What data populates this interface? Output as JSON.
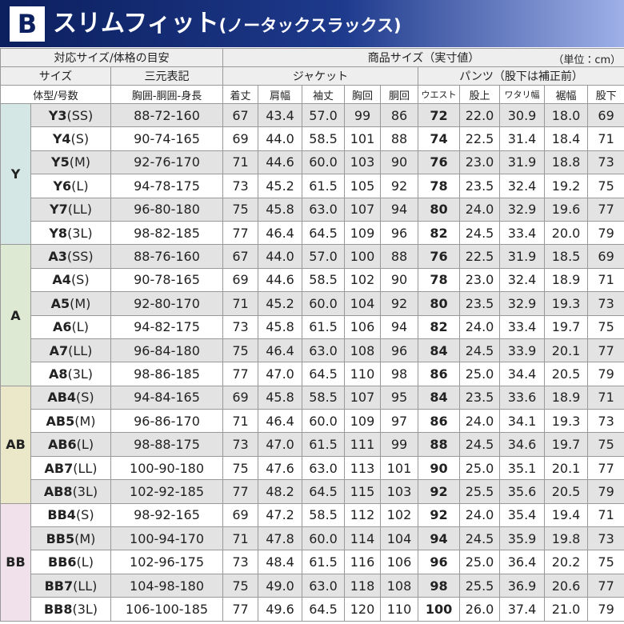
{
  "header": {
    "badge": "B",
    "title": "スリムフィット",
    "subtitle": "(ノータックスラックス)"
  },
  "table": {
    "head": {
      "fit_group": "対応サイズ/体格の目安",
      "product_group": "商品サイズ（実寸値）",
      "unit": "（単位：cm）",
      "size": "サイズ",
      "three": "三元表記",
      "jacket": "ジャケット",
      "pants": "パンツ（股下は補正前）",
      "body": "体型/号数",
      "measure": "胸囲-胴囲-身長",
      "columns": [
        "着丈",
        "肩幅",
        "袖丈",
        "胸回",
        "胴回",
        "ウエスト",
        "股上",
        "ワタリ幅",
        "裾幅",
        "股下"
      ]
    },
    "groups": [
      {
        "label": "Y",
        "rows": [
          {
            "code": "Y3",
            "fit": "(SS)",
            "spec": "88-72-160",
            "values": [
              "67",
              "43.4",
              "57.0",
              "99",
              "86",
              "72",
              "22.0",
              "30.9",
              "18.0",
              "69"
            ]
          },
          {
            "code": "Y4",
            "fit": "(S)",
            "spec": "90-74-165",
            "values": [
              "69",
              "44.0",
              "58.5",
              "101",
              "88",
              "74",
              "22.5",
              "31.4",
              "18.4",
              "71"
            ]
          },
          {
            "code": "Y5",
            "fit": "(M)",
            "spec": "92-76-170",
            "values": [
              "71",
              "44.6",
              "60.0",
              "103",
              "90",
              "76",
              "23.0",
              "31.9",
              "18.8",
              "73"
            ]
          },
          {
            "code": "Y6",
            "fit": "(L)",
            "spec": "94-78-175",
            "values": [
              "73",
              "45.2",
              "61.5",
              "105",
              "92",
              "78",
              "23.5",
              "32.4",
              "19.2",
              "75"
            ]
          },
          {
            "code": "Y7",
            "fit": "(LL)",
            "spec": "96-80-180",
            "values": [
              "75",
              "45.8",
              "63.0",
              "107",
              "94",
              "80",
              "24.0",
              "32.9",
              "19.6",
              "77"
            ]
          },
          {
            "code": "Y8",
            "fit": "(3L)",
            "spec": "98-82-185",
            "values": [
              "77",
              "46.4",
              "64.5",
              "109",
              "96",
              "82",
              "24.5",
              "33.4",
              "20.0",
              "79"
            ]
          }
        ]
      },
      {
        "label": "A",
        "rows": [
          {
            "code": "A3",
            "fit": "(SS)",
            "spec": "88-76-160",
            "values": [
              "67",
              "44.0",
              "57.0",
              "100",
              "88",
              "76",
              "22.5",
              "31.9",
              "18.5",
              "69"
            ]
          },
          {
            "code": "A4",
            "fit": "(S)",
            "spec": "90-78-165",
            "values": [
              "69",
              "44.6",
              "58.5",
              "102",
              "90",
              "78",
              "23.0",
              "32.4",
              "18.9",
              "71"
            ]
          },
          {
            "code": "A5",
            "fit": "(M)",
            "spec": "92-80-170",
            "values": [
              "71",
              "45.2",
              "60.0",
              "104",
              "92",
              "80",
              "23.5",
              "32.9",
              "19.3",
              "73"
            ]
          },
          {
            "code": "A6",
            "fit": "(L)",
            "spec": "94-82-175",
            "values": [
              "73",
              "45.8",
              "61.5",
              "106",
              "94",
              "82",
              "24.0",
              "33.4",
              "19.7",
              "75"
            ]
          },
          {
            "code": "A7",
            "fit": "(LL)",
            "spec": "96-84-180",
            "values": [
              "75",
              "46.4",
              "63.0",
              "108",
              "96",
              "84",
              "24.5",
              "33.9",
              "20.1",
              "77"
            ]
          },
          {
            "code": "A8",
            "fit": "(3L)",
            "spec": "98-86-185",
            "values": [
              "77",
              "47.0",
              "64.5",
              "110",
              "98",
              "86",
              "25.0",
              "34.4",
              "20.5",
              "79"
            ]
          }
        ]
      },
      {
        "label": "AB",
        "rows": [
          {
            "code": "AB4",
            "fit": "(S)",
            "spec": "94-84-165",
            "values": [
              "69",
              "45.8",
              "58.5",
              "107",
              "95",
              "84",
              "23.5",
              "33.6",
              "18.9",
              "71"
            ]
          },
          {
            "code": "AB5",
            "fit": "(M)",
            "spec": "96-86-170",
            "values": [
              "71",
              "46.4",
              "60.0",
              "109",
              "97",
              "86",
              "24.0",
              "34.1",
              "19.3",
              "73"
            ]
          },
          {
            "code": "AB6",
            "fit": "(L)",
            "spec": "98-88-175",
            "values": [
              "73",
              "47.0",
              "61.5",
              "111",
              "99",
              "88",
              "24.5",
              "34.6",
              "19.7",
              "75"
            ]
          },
          {
            "code": "AB7",
            "fit": "(LL)",
            "spec": "100-90-180",
            "values": [
              "75",
              "47.6",
              "63.0",
              "113",
              "101",
              "90",
              "25.0",
              "35.1",
              "20.1",
              "77"
            ]
          },
          {
            "code": "AB8",
            "fit": "(3L)",
            "spec": "102-92-185",
            "values": [
              "77",
              "48.2",
              "64.5",
              "115",
              "103",
              "92",
              "25.5",
              "35.6",
              "20.5",
              "79"
            ]
          }
        ]
      },
      {
        "label": "BB",
        "rows": [
          {
            "code": "BB4",
            "fit": "(S)",
            "spec": "98-92-165",
            "values": [
              "69",
              "47.2",
              "58.5",
              "112",
              "102",
              "92",
              "24.0",
              "35.4",
              "19.4",
              "71"
            ]
          },
          {
            "code": "BB5",
            "fit": "(M)",
            "spec": "100-94-170",
            "values": [
              "71",
              "47.8",
              "60.0",
              "114",
              "104",
              "94",
              "24.5",
              "35.9",
              "19.8",
              "73"
            ]
          },
          {
            "code": "BB6",
            "fit": "(L)",
            "spec": "102-96-175",
            "values": [
              "73",
              "48.4",
              "61.5",
              "116",
              "106",
              "96",
              "25.0",
              "36.4",
              "20.2",
              "75"
            ]
          },
          {
            "code": "BB7",
            "fit": "(LL)",
            "spec": "104-98-180",
            "values": [
              "75",
              "49.0",
              "63.0",
              "118",
              "108",
              "98",
              "25.5",
              "36.9",
              "20.6",
              "77"
            ]
          },
          {
            "code": "BB8",
            "fit": "(3L)",
            "spec": "106-100-185",
            "values": [
              "77",
              "49.6",
              "64.5",
              "120",
              "110",
              "100",
              "26.0",
              "37.4",
              "21.0",
              "79"
            ]
          }
        ]
      }
    ]
  }
}
